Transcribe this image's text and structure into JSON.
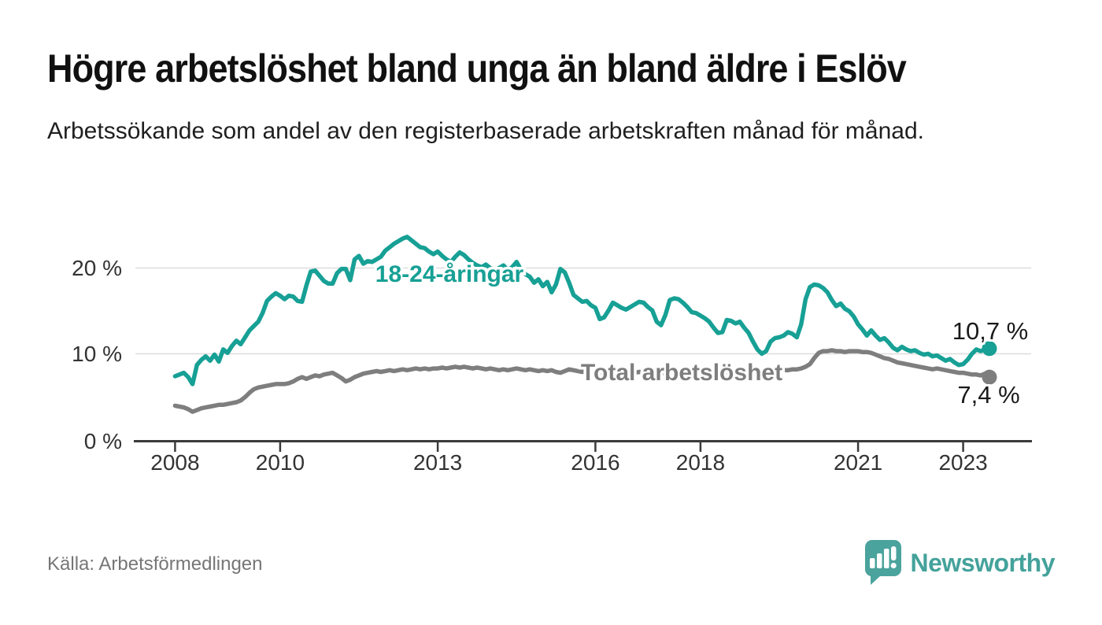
{
  "header": {
    "title": "Högre arbetslöshet bland unga än bland äldre i Eslöv",
    "subtitle": "Arbetssökande som andel av den registerbaserade arbetskraften månad för månad."
  },
  "footer": {
    "source": "Källa: Arbetsförmedlingen",
    "brand": "Newsworthy"
  },
  "colors": {
    "youth_line": "#17a095",
    "total_line": "#7e7e7e",
    "value_label": "#1a1a1a",
    "axis": "#3a3a3a",
    "grid": "#dcdcdc",
    "brand_teal": "#4aa39c"
  },
  "chart_data": {
    "type": "line",
    "title": "Högre arbetslöshet bland unga än bland äldre i Eslöv",
    "subtitle": "Arbetssökande som andel av den registerbaserade arbetskraften månad för månad.",
    "xlabel": "",
    "ylabel": "",
    "unit": "%",
    "frequency": "monthly",
    "x_start": "2008-01",
    "x_end": "2023-07",
    "ylim": [
      0,
      24
    ],
    "grid": "horizontal",
    "y_ticks": [
      "0 %",
      "10 %",
      "20 %"
    ],
    "x_ticks": [
      {
        "label": "2008",
        "month_index": 0
      },
      {
        "label": "2010",
        "month_index": 24
      },
      {
        "label": "2013",
        "month_index": 60
      },
      {
        "label": "2016",
        "month_index": 96
      },
      {
        "label": "2018",
        "month_index": 120
      },
      {
        "label": "2021",
        "month_index": 156
      },
      {
        "label": "2023",
        "month_index": 180
      }
    ],
    "series": [
      {
        "name": "18-24-åringar",
        "color": "#17a095",
        "end_label": "10,7 %",
        "end_value": 10.7,
        "values": [
          7.5,
          7.7,
          7.9,
          7.4,
          6.6,
          8.8,
          9.4,
          9.8,
          9.3,
          10.0,
          9.2,
          10.6,
          10.2,
          11.0,
          11.6,
          11.2,
          12.0,
          12.8,
          13.3,
          13.8,
          14.8,
          16.2,
          16.7,
          17.1,
          16.8,
          16.4,
          16.8,
          16.7,
          16.2,
          16.1,
          18.0,
          19.6,
          19.7,
          19.1,
          18.5,
          18.2,
          18.2,
          19.4,
          19.9,
          19.9,
          18.6,
          21.0,
          21.4,
          20.5,
          20.8,
          20.7,
          21.0,
          21.3,
          22.0,
          22.4,
          22.8,
          23.1,
          23.4,
          23.6,
          23.2,
          22.8,
          22.4,
          22.3,
          21.9,
          21.6,
          21.9,
          21.4,
          21.0,
          20.7,
          21.3,
          21.8,
          21.5,
          21.0,
          20.6,
          20.3,
          20.1,
          20.4,
          20.0,
          19.7,
          20.0,
          20.3,
          19.8,
          20.1,
          20.7,
          19.8,
          19.3,
          19.0,
          18.3,
          18.7,
          17.9,
          18.4,
          17.2,
          18.1,
          19.9,
          19.5,
          18.3,
          16.9,
          16.5,
          16.1,
          16.2,
          15.7,
          15.4,
          14.1,
          14.3,
          15.1,
          16.0,
          15.7,
          15.4,
          15.2,
          15.5,
          15.8,
          16.1,
          16.0,
          15.5,
          15.1,
          13.8,
          13.4,
          14.6,
          16.3,
          16.5,
          16.4,
          16.0,
          15.5,
          14.9,
          14.8,
          14.5,
          14.2,
          13.8,
          13.1,
          12.5,
          12.6,
          14.0,
          13.9,
          13.6,
          13.8,
          13.1,
          12.5,
          11.5,
          10.6,
          10.1,
          10.4,
          11.5,
          11.9,
          12.0,
          12.2,
          12.6,
          12.4,
          12.0,
          13.5,
          16.4,
          17.8,
          18.1,
          18.0,
          17.7,
          17.2,
          16.3,
          15.6,
          15.9,
          15.3,
          15.0,
          14.4,
          13.5,
          12.9,
          12.2,
          12.8,
          12.2,
          11.7,
          11.9,
          11.4,
          10.8,
          10.5,
          10.9,
          10.6,
          10.4,
          10.5,
          10.2,
          10.0,
          10.1,
          9.8,
          9.9,
          9.6,
          9.3,
          9.5,
          9.1,
          8.8,
          8.9,
          9.4,
          10.1,
          10.6,
          10.4,
          10.6,
          10.7
        ]
      },
      {
        "name": "Total arbetslöshet",
        "color": "#7e7e7e",
        "end_label": "7,4 %",
        "end_value": 7.4,
        "values": [
          4.1,
          4.0,
          3.9,
          3.7,
          3.4,
          3.6,
          3.8,
          3.9,
          4.0,
          4.1,
          4.2,
          4.2,
          4.3,
          4.4,
          4.5,
          4.7,
          5.1,
          5.6,
          6.0,
          6.2,
          6.3,
          6.4,
          6.5,
          6.6,
          6.6,
          6.6,
          6.7,
          6.9,
          7.2,
          7.4,
          7.2,
          7.4,
          7.6,
          7.5,
          7.7,
          7.8,
          7.9,
          7.6,
          7.3,
          6.9,
          7.1,
          7.4,
          7.6,
          7.8,
          7.9,
          8.0,
          8.1,
          8.0,
          8.1,
          8.2,
          8.1,
          8.2,
          8.3,
          8.2,
          8.3,
          8.4,
          8.3,
          8.4,
          8.3,
          8.4,
          8.4,
          8.5,
          8.4,
          8.5,
          8.6,
          8.5,
          8.6,
          8.5,
          8.4,
          8.5,
          8.4,
          8.3,
          8.4,
          8.3,
          8.2,
          8.3,
          8.2,
          8.3,
          8.4,
          8.3,
          8.2,
          8.3,
          8.2,
          8.1,
          8.2,
          8.1,
          8.2,
          8.0,
          7.9,
          8.1,
          8.3,
          8.2,
          8.1,
          8.0,
          8.1,
          8.0,
          7.9,
          7.8,
          7.9,
          7.7,
          7.8,
          8.0,
          8.2,
          8.1,
          8.0,
          7.9,
          8.0,
          7.9,
          8.0,
          7.9,
          7.8,
          7.9,
          7.8,
          8.0,
          8.1,
          8.0,
          7.9,
          8.0,
          7.9,
          8.0,
          7.9,
          7.8,
          7.7,
          7.8,
          7.7,
          7.8,
          7.9,
          8.0,
          7.9,
          7.8,
          7.9,
          7.8,
          7.9,
          7.8,
          7.9,
          7.8,
          7.9,
          8.0,
          8.1,
          8.2,
          8.2,
          8.3,
          8.3,
          8.4,
          8.6,
          8.9,
          9.6,
          10.2,
          10.4,
          10.4,
          10.5,
          10.4,
          10.4,
          10.3,
          10.4,
          10.4,
          10.4,
          10.3,
          10.3,
          10.2,
          10.0,
          9.8,
          9.6,
          9.5,
          9.3,
          9.1,
          9.0,
          8.9,
          8.8,
          8.7,
          8.6,
          8.5,
          8.4,
          8.3,
          8.4,
          8.3,
          8.2,
          8.1,
          8.0,
          7.9,
          7.9,
          7.8,
          7.7,
          7.7,
          7.6,
          7.8,
          7.4
        ]
      }
    ]
  }
}
